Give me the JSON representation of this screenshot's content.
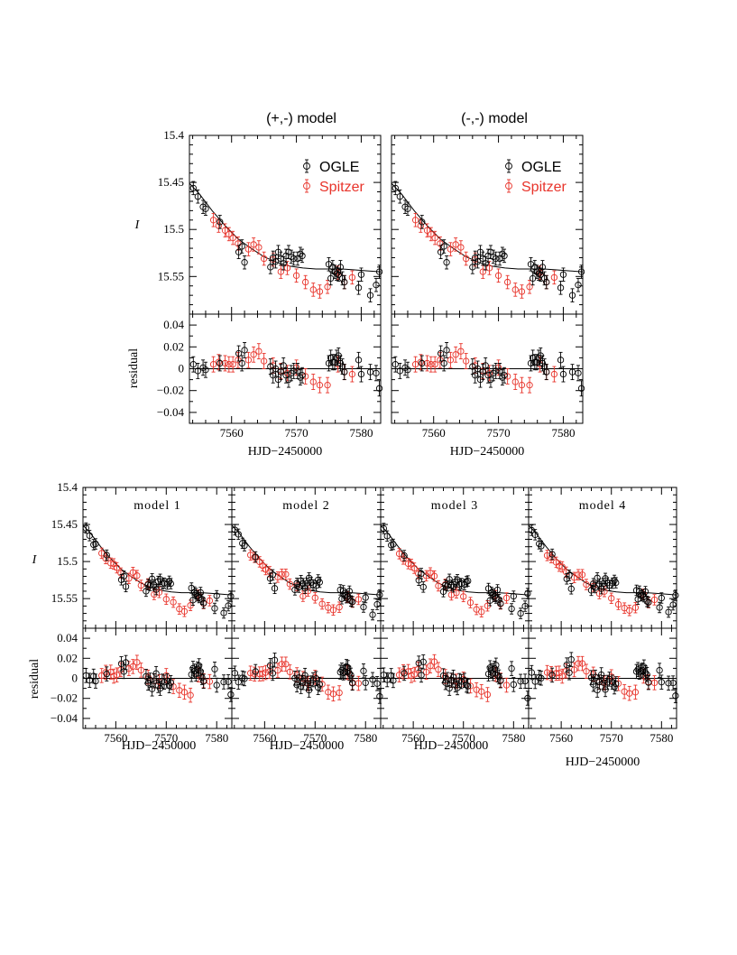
{
  "colors": {
    "ogle": "#000000",
    "spitzer": "#e8332a",
    "model_line": "#000000",
    "frame": "#000000"
  },
  "chart_data": [
    {
      "type": "scatter",
      "panel_title": "(+,-) model",
      "xlabel": "HJD−2450000",
      "ylabel_top": "I",
      "ylabel_bottom": "residual",
      "xlim": [
        7553.5,
        7583
      ],
      "ylim_top": [
        15.4,
        15.59
      ],
      "ylim_bottom": [
        -0.05,
        0.05
      ],
      "legend": {
        "position": "top-right",
        "entries": [
          "OGLE",
          "Spitzer"
        ]
      },
      "x_tick_labels": [
        "7560",
        "7570",
        "7580"
      ],
      "y_tick_labels_top": [
        "15.4",
        "15.45",
        "15.5",
        "15.55"
      ],
      "y_tick_labels_bottom": [
        "0.04",
        "0.02",
        "0",
        "−0.02",
        "−0.04"
      ]
    },
    {
      "type": "scatter",
      "panel_title": "(-,-) model",
      "xlabel": "HJD−2450000",
      "xlim": [
        7553.5,
        7583
      ],
      "ylim_top": [
        15.4,
        15.59
      ],
      "ylim_bottom": [
        -0.05,
        0.05
      ],
      "legend": {
        "position": "top-right",
        "entries": [
          "OGLE",
          "Spitzer"
        ]
      },
      "x_tick_labels": [
        "7560",
        "7570",
        "7580"
      ]
    },
    {
      "type": "scatter",
      "panel_title": "model 1",
      "xlabel": "HJD−2450000",
      "ylabel_top": "I",
      "ylabel_bottom": "residual",
      "xlim": [
        7553.5,
        7583
      ],
      "ylim_top": [
        15.4,
        15.59
      ],
      "ylim_bottom": [
        -0.05,
        0.05
      ],
      "x_tick_labels": [
        "7560",
        "7570",
        "7580"
      ],
      "y_tick_labels_top": [
        "15.4",
        "15.45",
        "15.5",
        "15.55"
      ],
      "y_tick_labels_bottom": [
        "0.04",
        "0.02",
        "0",
        "−0.02",
        "−0.04"
      ]
    },
    {
      "type": "scatter",
      "panel_title": "model 2",
      "xlabel": "HJD−2450000",
      "xlim": [
        7553.5,
        7583
      ],
      "ylim_top": [
        15.4,
        15.59
      ],
      "ylim_bottom": [
        -0.05,
        0.05
      ],
      "x_tick_labels": [
        "7560",
        "7570",
        "7580"
      ]
    },
    {
      "type": "scatter",
      "panel_title": "model 3",
      "xlabel": "HJD−2450000",
      "xlim": [
        7553.5,
        7583
      ],
      "ylim_top": [
        15.4,
        15.59
      ],
      "ylim_bottom": [
        -0.05,
        0.05
      ],
      "x_tick_labels": [
        "7560",
        "7570",
        "7580"
      ]
    },
    {
      "type": "scatter",
      "panel_title": "model 4",
      "xlabel": "HJD−2450000",
      "xlim": [
        7553.5,
        7583
      ],
      "ylim_top": [
        15.4,
        15.59
      ],
      "ylim_bottom": [
        -0.05,
        0.05
      ],
      "x_tick_labels": [
        "7560",
        "7570",
        "7580"
      ]
    }
  ],
  "series": {
    "ogle": {
      "name": "OGLE",
      "t": [
        7554.1,
        7554.8,
        7555.6,
        7556.0,
        7558.2,
        7561.1,
        7561.6,
        7562.0,
        7566.0,
        7566.4,
        7566.8,
        7567.2,
        7567.6,
        7568.0,
        7568.4,
        7568.8,
        7569.2,
        7569.6,
        7570.2,
        7570.6,
        7570.9,
        7575.0,
        7575.3,
        7575.6,
        7575.9,
        7576.2,
        7576.5,
        7576.8,
        7577.1,
        7577.4,
        7579.6,
        7580.0,
        7581.4,
        7582.3,
        7582.8
      ],
      "mag": [
        15.456,
        15.465,
        15.476,
        15.478,
        15.492,
        15.524,
        15.518,
        15.535,
        15.54,
        15.53,
        15.534,
        15.524,
        15.531,
        15.536,
        15.528,
        15.524,
        15.529,
        15.531,
        15.531,
        15.526,
        15.528,
        15.537,
        15.552,
        15.54,
        15.545,
        15.547,
        15.548,
        15.54,
        15.552,
        15.556,
        15.562,
        15.548,
        15.57,
        15.559,
        15.545
      ],
      "res": [
        0.004,
        -0.002,
        0.001,
        -0.001,
        0.005,
        0.014,
        0.005,
        0.017,
        0.002,
        -0.006,
        0.0,
        -0.01,
        -0.003,
        0.003,
        -0.006,
        -0.01,
        -0.004,
        -0.002,
        -0.002,
        -0.008,
        -0.006,
        0.005,
        0.01,
        0.006,
        0.006,
        0.01,
        0.012,
        0.005,
        0.002,
        -0.003,
        0.008,
        -0.005,
        -0.003,
        -0.004,
        -0.018
      ]
    },
    "spitzer": {
      "name": "Spitzer",
      "t": [
        7557.2,
        7558.0,
        7559.0,
        7559.6,
        7560.2,
        7561.0,
        7562.6,
        7563.4,
        7564.2,
        7565.0,
        7566.4,
        7567.6,
        7568.6,
        7570.0,
        7571.4,
        7572.6,
        7573.6,
        7574.8,
        7576.4,
        7577.4,
        7578.6
      ],
      "mag": [
        15.49,
        15.496,
        15.501,
        15.505,
        15.509,
        15.515,
        15.521,
        15.516,
        15.519,
        15.531,
        15.532,
        15.545,
        15.541,
        15.549,
        15.556,
        15.564,
        15.566,
        15.561,
        15.546,
        15.556,
        15.551
      ],
      "res": [
        0.004,
        0.006,
        0.005,
        0.004,
        0.004,
        0.008,
        0.008,
        0.013,
        0.016,
        0.007,
        0.003,
        -0.002,
        -0.004,
        0.001,
        -0.007,
        -0.012,
        -0.015,
        -0.015,
        0.004,
        -0.003,
        -0.005
      ]
    },
    "model": {
      "t": [
        7553.5,
        7555.0,
        7557.0,
        7559.0,
        7561.0,
        7563.0,
        7565.0,
        7567.0,
        7569.0,
        7571.0,
        7573.0,
        7575.0,
        7577.0,
        7579.0,
        7581.0,
        7583.0
      ],
      "mag": [
        15.451,
        15.462,
        15.48,
        15.496,
        15.51,
        15.52,
        15.529,
        15.535,
        15.539,
        15.541,
        15.542,
        15.542,
        15.542,
        15.543,
        15.544,
        15.545
      ]
    }
  }
}
